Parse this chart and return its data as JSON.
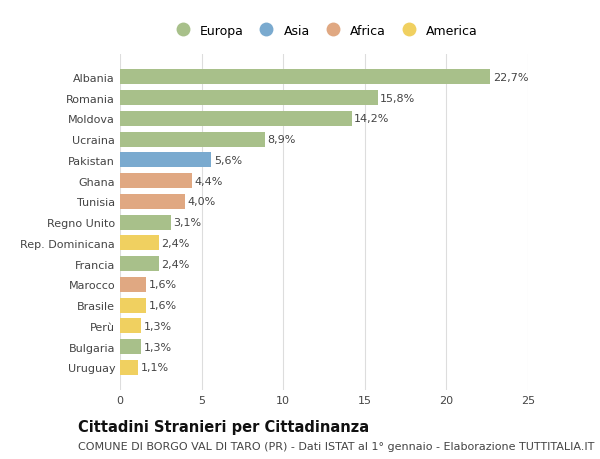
{
  "countries": [
    "Albania",
    "Romania",
    "Moldova",
    "Ucraina",
    "Pakistan",
    "Ghana",
    "Tunisia",
    "Regno Unito",
    "Rep. Dominicana",
    "Francia",
    "Marocco",
    "Brasile",
    "Perù",
    "Bulgaria",
    "Uruguay"
  ],
  "values": [
    22.7,
    15.8,
    14.2,
    8.9,
    5.6,
    4.4,
    4.0,
    3.1,
    2.4,
    2.4,
    1.6,
    1.6,
    1.3,
    1.3,
    1.1
  ],
  "labels": [
    "22,7%",
    "15,8%",
    "14,2%",
    "8,9%",
    "5,6%",
    "4,4%",
    "4,0%",
    "3,1%",
    "2,4%",
    "2,4%",
    "1,6%",
    "1,6%",
    "1,3%",
    "1,3%",
    "1,1%"
  ],
  "continents": [
    "Europa",
    "Europa",
    "Europa",
    "Europa",
    "Asia",
    "Africa",
    "Africa",
    "Europa",
    "America",
    "Europa",
    "Africa",
    "America",
    "America",
    "Europa",
    "America"
  ],
  "colors": {
    "Europa": "#a8c08a",
    "Asia": "#7aaacf",
    "Africa": "#e0a882",
    "America": "#f0d060"
  },
  "legend_order": [
    "Europa",
    "Asia",
    "Africa",
    "America"
  ],
  "title": "Cittadini Stranieri per Cittadinanza",
  "subtitle": "COMUNE DI BORGO VAL DI TARO (PR) - Dati ISTAT al 1° gennaio - Elaborazione TUTTITALIA.IT",
  "xlim": [
    0,
    25
  ],
  "xticks": [
    0,
    5,
    10,
    15,
    20,
    25
  ],
  "background_color": "#ffffff",
  "grid_color": "#dddddd",
  "bar_height": 0.72,
  "title_fontsize": 10.5,
  "subtitle_fontsize": 8,
  "label_fontsize": 8,
  "tick_fontsize": 8,
  "legend_fontsize": 9
}
